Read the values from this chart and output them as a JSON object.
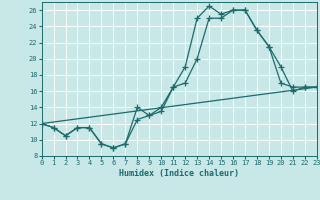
{
  "xlabel": "Humidex (Indice chaleur)",
  "bg_color": "#c8e8e8",
  "grid_color": "#b0d8d8",
  "line_color": "#1a6b6b",
  "xlim": [
    0,
    23
  ],
  "ylim": [
    8,
    27
  ],
  "yticks": [
    8,
    10,
    12,
    14,
    16,
    18,
    20,
    22,
    24,
    26
  ],
  "xticks": [
    0,
    1,
    2,
    3,
    4,
    5,
    6,
    7,
    8,
    9,
    10,
    11,
    12,
    13,
    14,
    15,
    16,
    17,
    18,
    19,
    20,
    21,
    22,
    23
  ],
  "line1_x": [
    0,
    1,
    2,
    3,
    4,
    5,
    6,
    7,
    8,
    9,
    10,
    11,
    12,
    13,
    14,
    15,
    16,
    17,
    18,
    19,
    20,
    21,
    22,
    23
  ],
  "line1_y": [
    12,
    11.5,
    10.5,
    11.5,
    11.5,
    9.5,
    9,
    9.5,
    12.5,
    13,
    13.5,
    16.5,
    19,
    25,
    26.5,
    25.5,
    26,
    26,
    23.5,
    21.5,
    17,
    16.5,
    16.5,
    16.5
  ],
  "line2_x": [
    0,
    1,
    2,
    3,
    4,
    5,
    6,
    7,
    8,
    9,
    10,
    11,
    12,
    13,
    14,
    15,
    16,
    17,
    18,
    19,
    20,
    21,
    22,
    23
  ],
  "line2_y": [
    12,
    11.5,
    10.5,
    11.5,
    11.5,
    9.5,
    9,
    9.5,
    14,
    13,
    14,
    16.5,
    17,
    20,
    25,
    25,
    26,
    26,
    23.5,
    21.5,
    19,
    16,
    16.5,
    16.5
  ],
  "line3_x": [
    0,
    23
  ],
  "line3_y": [
    12,
    16.5
  ]
}
